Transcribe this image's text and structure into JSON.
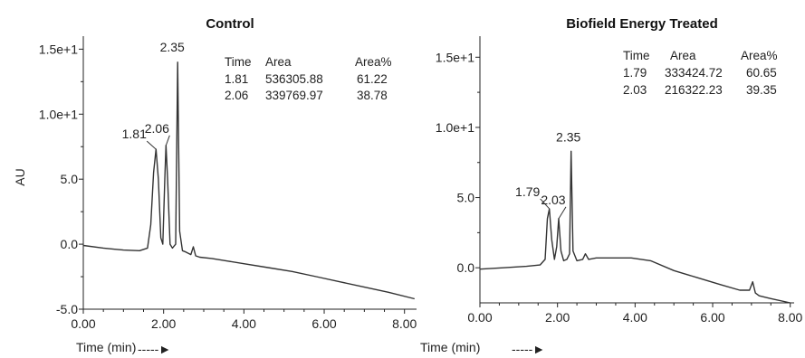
{
  "chart_data": [
    {
      "type": "line",
      "title": "Control",
      "xlabel": "Time (min)",
      "ylabel": "AU",
      "xlim": [
        0,
        8.3
      ],
      "ylim": [
        -5,
        16
      ],
      "x_ticks": [
        "0.00",
        "2.00",
        "4.00",
        "6.00",
        "8.00"
      ],
      "y_ticks": [
        "-5.0",
        "0.0",
        "5.0",
        "1.0e+1",
        "1.5e+1"
      ],
      "y_tick_values": [
        -5,
        0,
        5,
        10,
        15
      ],
      "x_tick_values": [
        0,
        2,
        4,
        6,
        8
      ],
      "series": [
        {
          "x": [
            0.0,
            0.5,
            1.0,
            1.4,
            1.6,
            1.68,
            1.75,
            1.81,
            1.87,
            1.93,
            1.98,
            2.03,
            2.06,
            2.1,
            2.16,
            2.22,
            2.3,
            2.35,
            2.4,
            2.47,
            2.55,
            2.68,
            2.74,
            2.8,
            2.9,
            3.2,
            3.6,
            4.0,
            4.6,
            5.2,
            5.8,
            6.4,
            7.0,
            7.6,
            8.25
          ],
          "y": [
            -0.1,
            -0.3,
            -0.45,
            -0.5,
            -0.3,
            1.5,
            5.5,
            7.3,
            5.0,
            0.5,
            0.0,
            5.0,
            7.6,
            5.0,
            0.0,
            -0.3,
            0.0,
            14.0,
            1.0,
            -0.5,
            -0.6,
            -0.8,
            -0.2,
            -0.9,
            -1.0,
            -1.1,
            -1.3,
            -1.5,
            -1.8,
            -2.1,
            -2.5,
            -2.9,
            -3.3,
            -3.7,
            -4.2
          ]
        }
      ],
      "peak_labels": [
        {
          "x": 1.81,
          "y": 7.3,
          "text": "1.81"
        },
        {
          "x": 2.06,
          "y": 7.6,
          "text": "2.06"
        },
        {
          "x": 2.35,
          "y": 14.0,
          "text": "2.35"
        }
      ],
      "table": {
        "headers": [
          "Time",
          "Area",
          "Area%"
        ],
        "rows": [
          [
            "1.81",
            "536305.88",
            "61.22"
          ],
          [
            "2.06",
            "339769.97",
            "38.78"
          ]
        ]
      },
      "arrow": "-----►",
      "grid": false
    },
    {
      "type": "line",
      "title": "Biofield  Energy Treated",
      "xlabel": "Time (min)",
      "ylabel": "",
      "xlim": [
        0,
        8.1
      ],
      "ylim": [
        -2.5,
        16.5
      ],
      "x_ticks": [
        "0.00",
        "2.00",
        "4.00",
        "6.00",
        "8.00"
      ],
      "y_ticks": [
        "0.0",
        "5.0",
        "1.0e+1",
        "1.5e+1"
      ],
      "y_tick_values": [
        0,
        5,
        10,
        15
      ],
      "x_tick_values": [
        0,
        2,
        4,
        6,
        8
      ],
      "series": [
        {
          "x": [
            0.0,
            0.6,
            1.2,
            1.55,
            1.68,
            1.74,
            1.79,
            1.85,
            1.92,
            1.98,
            2.03,
            2.09,
            2.16,
            2.24,
            2.31,
            2.35,
            2.4,
            2.5,
            2.65,
            2.72,
            2.8,
            3.0,
            3.4,
            3.9,
            4.4,
            5.0,
            5.6,
            6.2,
            6.7,
            6.95,
            7.03,
            7.1,
            7.2,
            7.5,
            8.0
          ],
          "y": [
            -0.1,
            0.0,
            0.1,
            0.2,
            0.6,
            3.5,
            4.2,
            2.0,
            0.6,
            1.5,
            3.5,
            1.2,
            0.5,
            0.6,
            1.0,
            8.3,
            1.2,
            0.5,
            0.6,
            1.0,
            0.6,
            0.7,
            0.7,
            0.7,
            0.5,
            -0.2,
            -0.7,
            -1.2,
            -1.6,
            -1.6,
            -1.0,
            -1.8,
            -2.0,
            -2.2,
            -2.5
          ]
        }
      ],
      "peak_labels": [
        {
          "x": 1.79,
          "y": 4.2,
          "text": "1.79"
        },
        {
          "x": 2.03,
          "y": 3.5,
          "text": "2.03"
        },
        {
          "x": 2.35,
          "y": 8.3,
          "text": "2.35"
        }
      ],
      "table": {
        "headers": [
          "Time",
          "Area",
          "Area%"
        ],
        "rows": [
          [
            "1.79",
            "333424.72",
            "60.65"
          ],
          [
            "2.03",
            "216322.23",
            "39.35"
          ]
        ]
      },
      "arrow": "-----►",
      "grid": false
    }
  ]
}
